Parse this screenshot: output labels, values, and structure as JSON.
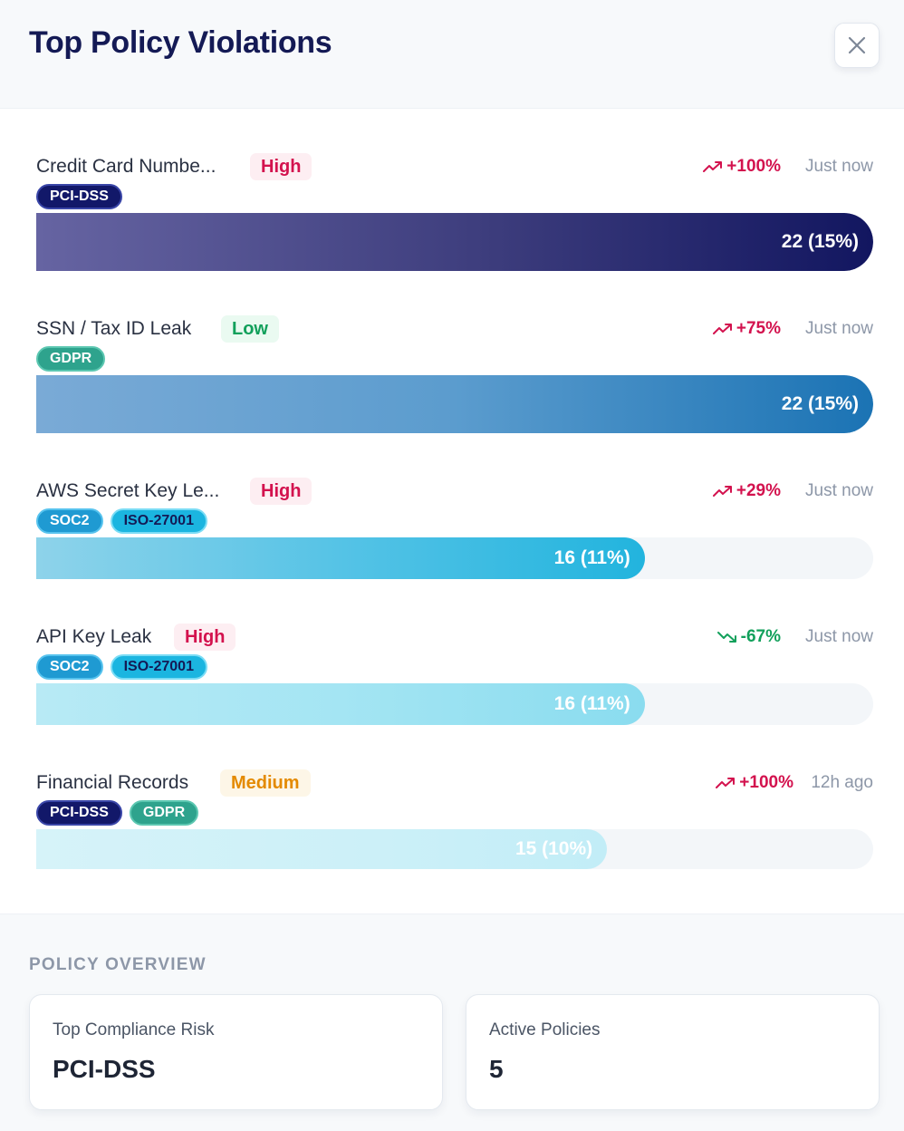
{
  "header": {
    "title": "Top Policy Violations"
  },
  "violations": [
    {
      "name": "Credit Card Numbe...",
      "severity": "High",
      "trend": "+100%",
      "trend_direction": "up",
      "time": "Just now",
      "tags": [
        "PCI-DSS"
      ],
      "bar_label": "22 (15%)",
      "count": 22,
      "percent": 15,
      "bar_fraction": 1.0
    },
    {
      "name": "SSN / Tax ID Leak",
      "severity": "Low",
      "trend": "+75%",
      "trend_direction": "up",
      "time": "Just now",
      "tags": [
        "GDPR"
      ],
      "bar_label": "22 (15%)",
      "count": 22,
      "percent": 15,
      "bar_fraction": 1.0
    },
    {
      "name": "AWS Secret Key Le...",
      "severity": "High",
      "trend": "+29%",
      "trend_direction": "up",
      "time": "Just now",
      "tags": [
        "SOC2",
        "ISO-27001"
      ],
      "bar_label": "16 (11%)",
      "count": 16,
      "percent": 11,
      "bar_fraction": 0.727
    },
    {
      "name": "API Key Leak",
      "severity": "High",
      "trend": "-67%",
      "trend_direction": "down",
      "time": "Just now",
      "tags": [
        "SOC2",
        "ISO-27001"
      ],
      "bar_label": "16 (11%)",
      "count": 16,
      "percent": 11,
      "bar_fraction": 0.727
    },
    {
      "name": "Financial Records",
      "severity": "Medium",
      "trend": "+100%",
      "trend_direction": "up",
      "time": "12h ago",
      "tags": [
        "PCI-DSS",
        "GDPR"
      ],
      "bar_label": "15 (10%)",
      "count": 15,
      "percent": 10,
      "bar_fraction": 0.682
    }
  ],
  "overview": {
    "title": "POLICY OVERVIEW",
    "cards": [
      {
        "label": "Top Compliance Risk",
        "value": "PCI-DSS"
      },
      {
        "label": "Active Policies",
        "value": "5"
      }
    ]
  },
  "colors": {
    "title": "#141a55",
    "high": "#d3124e",
    "low": "#12a05b",
    "medium": "#e48a00",
    "trend_up": "#d3124e",
    "trend_down": "#12a05b",
    "muted": "#8d97a8"
  },
  "icons": {
    "close": "close-icon",
    "trend_up": "trend-up-icon",
    "trend_down": "trend-down-icon"
  }
}
